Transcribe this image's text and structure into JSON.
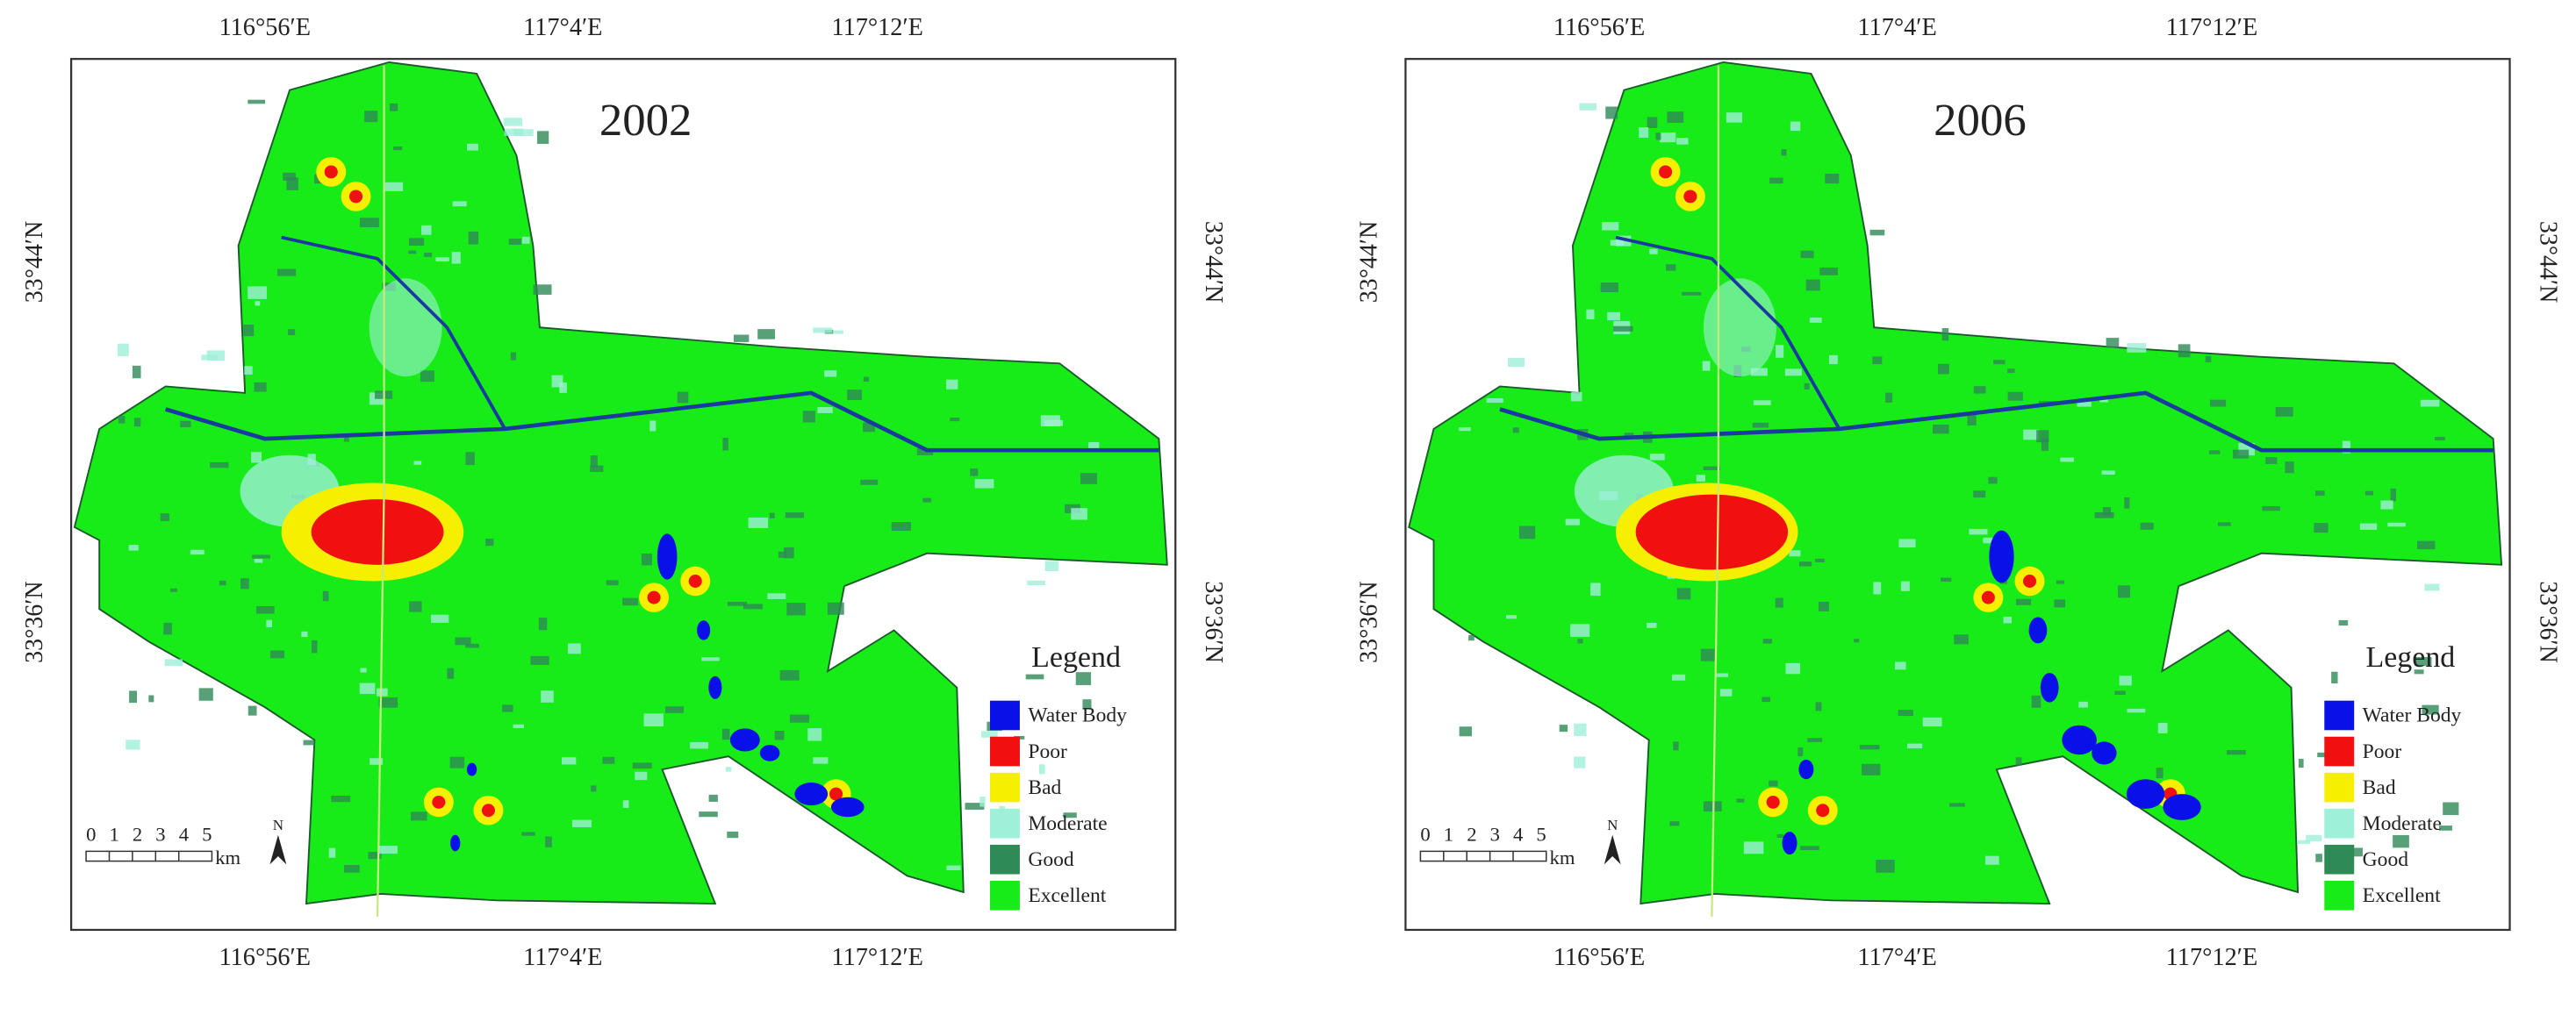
{
  "panels": [
    {
      "year": "2002",
      "top_labels": [
        "116°56′E",
        "117°4′E",
        "117°12′E"
      ],
      "bottom_labels": [
        "116°56′E",
        "117°4′E",
        "117°12′E"
      ],
      "left_labels": [
        "33°44′N",
        "33°36′N"
      ],
      "right_labels": [
        "33°44′N",
        "33°36′N"
      ],
      "legend": {
        "title": "Legend",
        "items": [
          {
            "label": "Water Body",
            "color": "#0a10e8"
          },
          {
            "label": "Poor",
            "color": "#f01010"
          },
          {
            "label": "Bad",
            "color": "#f6f000"
          },
          {
            "label": "Moderate",
            "color": "#9ef0d8"
          },
          {
            "label": "Good",
            "color": "#2e8a56"
          },
          {
            "label": "Excellent",
            "color": "#18ec18"
          }
        ]
      },
      "scale_bar": {
        "ticks": [
          "0",
          "1",
          "2",
          "3",
          "4",
          "5"
        ],
        "unit": "km"
      },
      "north": "N"
    },
    {
      "year": "2006",
      "top_labels": [
        "116°56′E",
        "117°4′E",
        "117°12′E"
      ],
      "bottom_labels": [
        "116°56′E",
        "117°4′E",
        "117°12′E"
      ],
      "left_labels": [
        "33°44′N",
        "33°36′N"
      ],
      "right_labels": [
        "33°44′N",
        "33°36′N"
      ],
      "legend": {
        "title": "Legend",
        "items": [
          {
            "label": "Water Body",
            "color": "#0a10e8"
          },
          {
            "label": "Poor",
            "color": "#f01010"
          },
          {
            "label": "Bad",
            "color": "#f6f000"
          },
          {
            "label": "Moderate",
            "color": "#9ef0d8"
          },
          {
            "label": "Good",
            "color": "#2e8a56"
          },
          {
            "label": "Excellent",
            "color": "#18ec18"
          }
        ]
      },
      "scale_bar": {
        "ticks": [
          "0",
          "1",
          "2",
          "3",
          "4",
          "5"
        ],
        "unit": "km"
      },
      "north": "N"
    }
  ]
}
